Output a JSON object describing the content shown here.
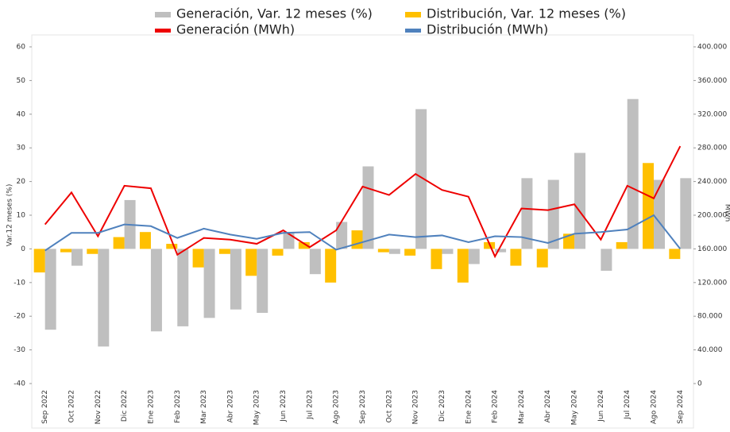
{
  "chart_data": {
    "type": "bar-line",
    "categories": [
      "Sep 2022",
      "Oct 2022",
      "Nov 2022",
      "Dic 2022",
      "Ene 2023",
      "Feb 2023",
      "Mar 2023",
      "Abr 2023",
      "May 2023",
      "Jun 2023",
      "Jul 2023",
      "Ago 2023",
      "Sep 2023",
      "Oct 2023",
      "Nov 2023",
      "Dic 2023",
      "Ene 2024",
      "Feb 2024",
      "Mar 2024",
      "Abr 2024",
      "May 2024",
      "Jun 2024",
      "Jul 2024",
      "Ago 2024",
      "Sep 2024"
    ],
    "y_label": "Var.12 meses (%)",
    "y2_label": "MWh",
    "ylim": [
      -40,
      60
    ],
    "yticks": [
      -40,
      -30,
      -20,
      -10,
      0,
      10,
      20,
      30,
      40,
      50,
      60
    ],
    "y2lim": [
      0,
      400000
    ],
    "y2ticks": [
      0,
      {
        "value": 40000,
        "label": "40.000"
      },
      {
        "value": 80000,
        "label": "80.000"
      },
      {
        "value": 120000,
        "label": "120.000"
      },
      {
        "value": 160000,
        "label": "160.000"
      },
      {
        "value": 200000,
        "label": "200.000"
      },
      {
        "value": 240000,
        "label": "240.000"
      },
      {
        "value": 280000,
        "label": "280.000"
      },
      {
        "value": 320000,
        "label": "320.000"
      },
      {
        "value": 360000,
        "label": "360.000"
      },
      {
        "value": 400000,
        "label": "400.000"
      }
    ],
    "series": [
      {
        "name": "Generación, Var. 12 meses (%)",
        "color": "#bfbfbf",
        "kind": "bar",
        "values": [
          -24,
          -5,
          -29,
          14.5,
          -24.5,
          -23,
          -20.5,
          -18,
          -19,
          5,
          -7.5,
          8,
          24.5,
          -1.5,
          41.5,
          -1.5,
          -4.5,
          -1,
          21,
          20.5,
          28.5,
          -6.5,
          44.5,
          20.5,
          21
        ]
      },
      {
        "name": "Distribución, Var. 12 meses (%)",
        "color": "#ffc000",
        "kind": "bar",
        "values": [
          -7,
          -1,
          -1.5,
          3.5,
          5,
          1.5,
          -5.5,
          -1.5,
          -8,
          -2,
          2,
          -10,
          5.5,
          -1,
          -2,
          -6,
          -10,
          2,
          -5,
          -5.5,
          4.5,
          0,
          2,
          25.5,
          -3
        ]
      },
      {
        "name": "Generación (MWh)",
        "color": "#ee0000",
        "kind": "line",
        "axis": "y2",
        "values": [
          189000,
          227000,
          175000,
          235000,
          232000,
          153000,
          173000,
          171000,
          166000,
          182000,
          162000,
          182000,
          234000,
          224000,
          249000,
          230000,
          222000,
          151000,
          208000,
          206000,
          213000,
          171000,
          235000,
          220000,
          282000
        ]
      },
      {
        "name": "Distribución (MWh)",
        "color": "#4f81bd",
        "kind": "line",
        "axis": "y2",
        "values": [
          158000,
          179000,
          179000,
          189000,
          187000,
          173000,
          184000,
          177000,
          172000,
          179000,
          180000,
          159000,
          168000,
          177000,
          174000,
          176000,
          168000,
          175000,
          174000,
          167000,
          178000,
          180000,
          183000,
          200000,
          160000
        ]
      }
    ]
  }
}
